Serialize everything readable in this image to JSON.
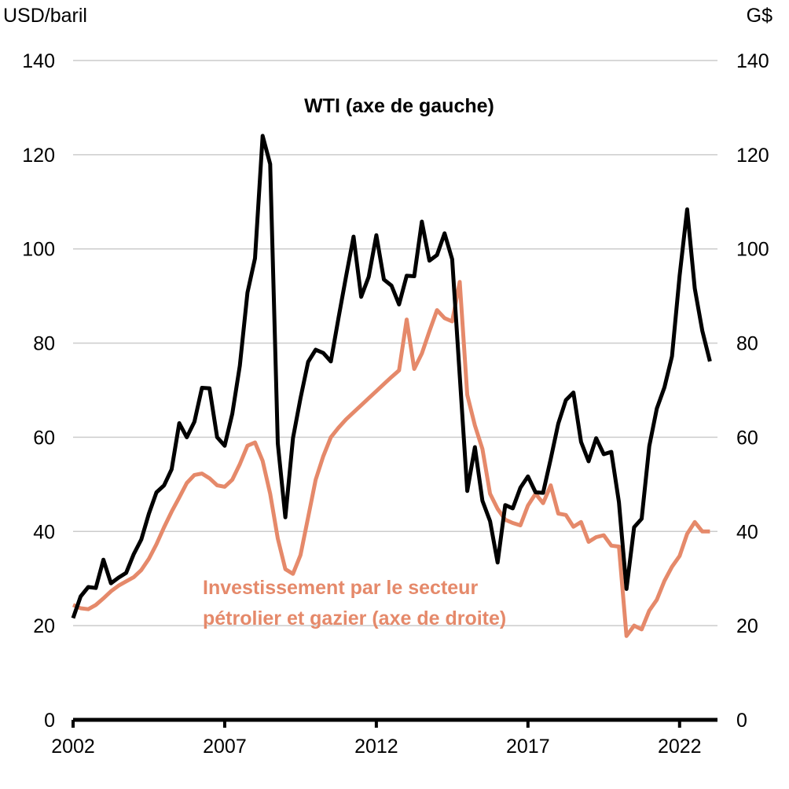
{
  "chart_data": {
    "type": "line",
    "y_left_label": "USD/baril",
    "y_right_label": "G$",
    "ylim": [
      0,
      140
    ],
    "y_ticks": [
      "0",
      "20",
      "40",
      "60",
      "80",
      "100",
      "120",
      "140"
    ],
    "x_ticks": [
      "2002",
      "2007",
      "2012",
      "2017",
      "2022"
    ],
    "grid": "horizontal",
    "colors": {
      "wti": "#000000",
      "investment": "#e5896a",
      "grid": "#cccccc"
    },
    "series": [
      {
        "name": "WTI (axe de gauche)",
        "axis": "left",
        "color": "#000000",
        "x": [
          2002.0,
          2002.25,
          2002.5,
          2002.75,
          2003.0,
          2003.25,
          2003.5,
          2003.75,
          2004.0,
          2004.25,
          2004.5,
          2004.75,
          2005.0,
          2005.25,
          2005.5,
          2005.75,
          2006.0,
          2006.25,
          2006.5,
          2006.75,
          2007.0,
          2007.25,
          2007.5,
          2007.75,
          2008.0,
          2008.25,
          2008.5,
          2008.75,
          2009.0,
          2009.25,
          2009.5,
          2009.75,
          2010.0,
          2010.25,
          2010.5,
          2010.75,
          2011.0,
          2011.25,
          2011.5,
          2011.75,
          2012.0,
          2012.25,
          2012.5,
          2012.75,
          2013.0,
          2013.25,
          2013.5,
          2013.75,
          2014.0,
          2014.25,
          2014.5,
          2014.75,
          2015.0,
          2015.25,
          2015.5,
          2015.75,
          2016.0,
          2016.25,
          2016.5,
          2016.75,
          2017.0,
          2017.25,
          2017.5,
          2017.75,
          2018.0,
          2018.25,
          2018.5,
          2018.75,
          2019.0,
          2019.25,
          2019.5,
          2019.75,
          2020.0,
          2020.25,
          2020.5,
          2020.75,
          2021.0,
          2021.25,
          2021.5,
          2021.75,
          2022.0,
          2022.25,
          2022.5,
          2022.75,
          2023.0
        ],
        "values": [
          21.6,
          26.2,
          28.2,
          28.0,
          34.0,
          29.0,
          30.2,
          31.2,
          35.2,
          38.3,
          43.8,
          48.3,
          49.8,
          53.2,
          63.0,
          60.0,
          63.3,
          70.5,
          70.4,
          60.0,
          58.2,
          65.0,
          75.2,
          90.7,
          98.0,
          124.0,
          118.0,
          58.7,
          43.0,
          59.8,
          68.3,
          76.0,
          78.6,
          77.9,
          76.1,
          85.2,
          94.1,
          102.6,
          89.8,
          94.1,
          102.9,
          93.5,
          92.2,
          88.2,
          94.3,
          94.2,
          105.8,
          97.5,
          98.7,
          103.3,
          97.8,
          73.1,
          48.6,
          57.9,
          46.5,
          42.2,
          33.4,
          45.6,
          44.9,
          49.3,
          51.7,
          48.3,
          48.2,
          55.4,
          62.9,
          67.9,
          69.5,
          59.0,
          54.9,
          59.8,
          56.4,
          56.9,
          46.2,
          27.8,
          40.9,
          42.7,
          58.1,
          66.1,
          70.6,
          77.2,
          94.3,
          108.4,
          91.6,
          82.6,
          76.1
        ]
      },
      {
        "name": "Investissement par le secteur pétrolier et gazier (axe de droite)",
        "axis": "right",
        "color": "#e5896a",
        "x": [
          2002.0,
          2002.25,
          2002.5,
          2002.75,
          2003.0,
          2003.25,
          2003.5,
          2003.75,
          2004.0,
          2004.25,
          2004.5,
          2004.75,
          2005.0,
          2005.25,
          2005.5,
          2005.75,
          2006.0,
          2006.25,
          2006.5,
          2006.75,
          2007.0,
          2007.25,
          2007.5,
          2007.75,
          2008.0,
          2008.25,
          2008.5,
          2008.75,
          2009.0,
          2009.25,
          2009.5,
          2009.75,
          2010.0,
          2010.25,
          2010.5,
          2010.75,
          2011.0,
          2011.25,
          2011.5,
          2011.75,
          2012.0,
          2012.25,
          2012.5,
          2012.75,
          2013.0,
          2013.25,
          2013.5,
          2013.75,
          2014.0,
          2014.25,
          2014.5,
          2014.75,
          2015.0,
          2015.25,
          2015.5,
          2015.75,
          2016.0,
          2016.25,
          2016.5,
          2016.75,
          2017.0,
          2017.25,
          2017.5,
          2017.75,
          2018.0,
          2018.25,
          2018.5,
          2018.75,
          2019.0,
          2019.25,
          2019.5,
          2019.75,
          2020.0,
          2020.25,
          2020.5,
          2020.75,
          2021.0,
          2021.25,
          2021.5,
          2021.75,
          2022.0,
          2022.25,
          2022.5,
          2022.75,
          2023.0
        ],
        "values": [
          24.4,
          23.7,
          23.5,
          24.4,
          25.8,
          27.3,
          28.5,
          29.4,
          30.3,
          31.8,
          34.2,
          37.3,
          40.9,
          44.2,
          47.2,
          50.3,
          52.0,
          52.3,
          51.3,
          49.8,
          49.5,
          51.0,
          54.3,
          58.2,
          58.9,
          55.0,
          48.0,
          38.5,
          32.0,
          31.0,
          35.0,
          43.0,
          51.0,
          56.0,
          60.0,
          62.0,
          63.8,
          65.3,
          66.8,
          68.3,
          69.8,
          71.3,
          72.8,
          74.2,
          85.0,
          74.5,
          77.8,
          82.5,
          87.0,
          85.3,
          84.6,
          93.0,
          69.0,
          62.5,
          57.5,
          48.0,
          44.8,
          42.5,
          41.8,
          41.3,
          45.5,
          48.0,
          46.0,
          49.8,
          43.8,
          43.5,
          41.0,
          42.0,
          37.8,
          38.8,
          39.2,
          37.0,
          36.8,
          17.8,
          20.0,
          19.2,
          23.2,
          25.5,
          29.5,
          32.5,
          34.8,
          39.5,
          42.0,
          40.0,
          40.0
        ]
      }
    ],
    "annotations": {
      "wti": "WTI (axe de gauche)",
      "investment_line1": "Investissement par le secteur",
      "investment_line2": "pétrolier et gazier (axe de droite)"
    }
  }
}
